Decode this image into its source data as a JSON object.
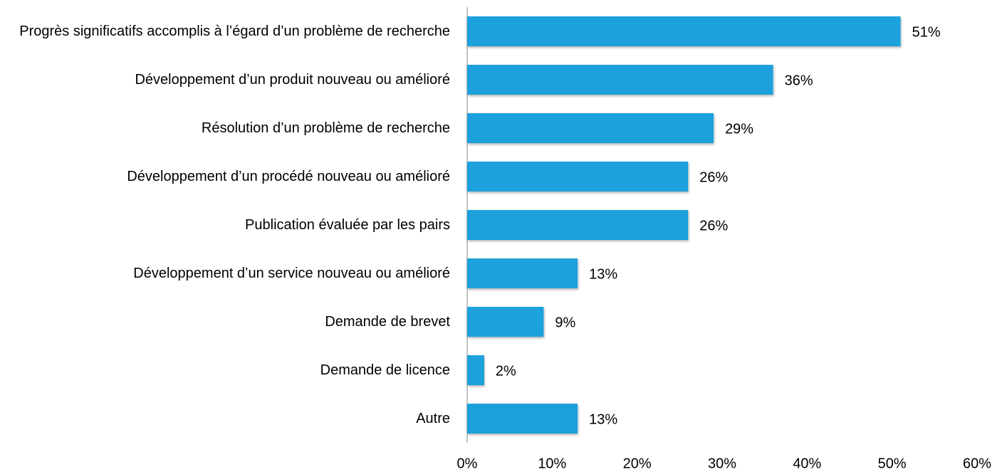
{
  "chart_data": {
    "type": "bar",
    "orientation": "horizontal",
    "categories": [
      "Progrès significatifs accomplis à l’égard d’un problème de recherche",
      "Développement d’un produit nouveau ou amélioré",
      "Résolution d’un problème de recherche",
      "Développement d’un procédé nouveau ou amélioré",
      "Publication évaluée par les pairs",
      "Développement d’un service nouveau ou amélioré",
      "Demande de brevet",
      "Demande de licence",
      "Autre"
    ],
    "values": [
      51,
      36,
      29,
      26,
      26,
      13,
      9,
      2,
      13
    ],
    "value_labels": [
      "51%",
      "36%",
      "29%",
      "26%",
      "26%",
      "13%",
      "9%",
      "2%",
      "13%"
    ],
    "color": "#1ea1dc",
    "xlim": [
      0,
      60
    ],
    "xticks": [
      {
        "value": 0,
        "label": "0%"
      },
      {
        "value": 10,
        "label": "10%"
      },
      {
        "value": 20,
        "label": "20%"
      },
      {
        "value": 30,
        "label": "30%"
      },
      {
        "value": 40,
        "label": "40%"
      },
      {
        "value": 50,
        "label": "50%"
      },
      {
        "value": 60,
        "label": "60%"
      }
    ],
    "grid": false
  }
}
